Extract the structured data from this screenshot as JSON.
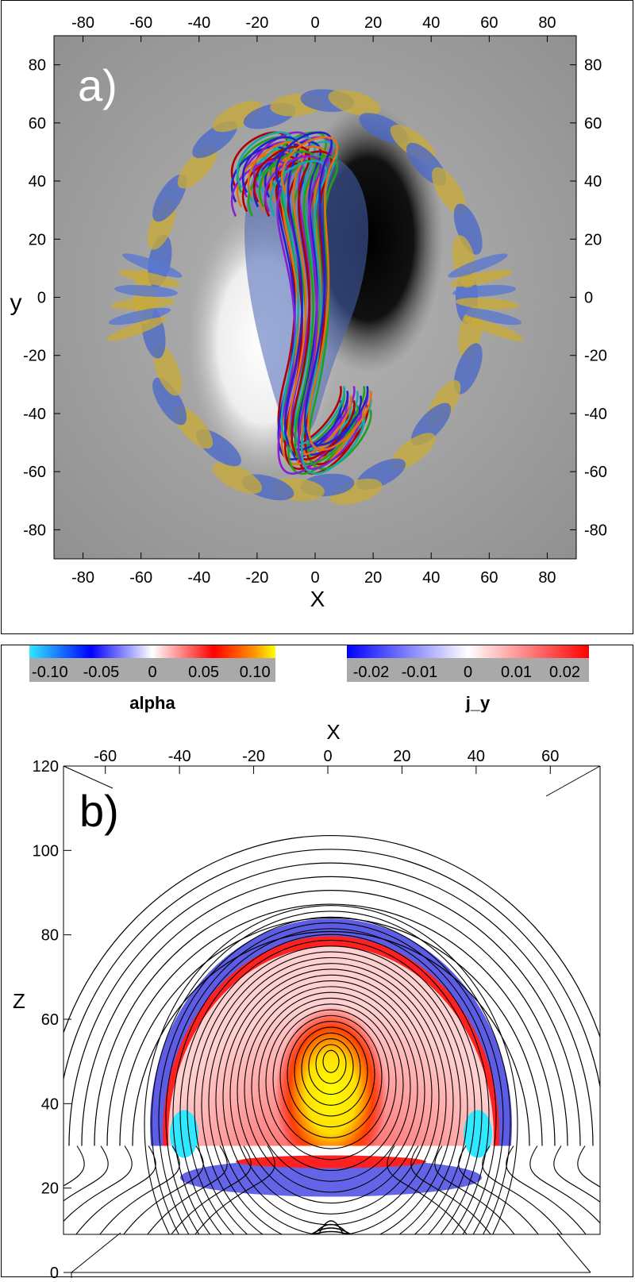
{
  "chart_data": [
    {
      "type": "heatmap",
      "panel_label": "a)",
      "xlabel": "X",
      "ylabel": "y",
      "xlim": [
        -90,
        90
      ],
      "ylim": [
        -90,
        90
      ],
      "x_ticks": [
        -80,
        -60,
        -40,
        -20,
        0,
        20,
        40,
        60,
        80
      ],
      "y_ticks": [
        -80,
        -60,
        -40,
        -20,
        0,
        20,
        40,
        60,
        80
      ],
      "description_layers": [
        "grayscale magnetogram",
        "blue and yellow isosurfaces",
        "colored twisted field lines"
      ],
      "field_line_colors": [
        "#b00000",
        "#1fa01f",
        "#8a1fd0",
        "#14a8a8",
        "#2222cc",
        "#e07010"
      ]
    },
    {
      "type": "heatmap",
      "panel_label": "b)",
      "xlabel": "X",
      "ylabel": "Z",
      "xlim": [
        -70,
        70
      ],
      "ylim": [
        0,
        120
      ],
      "x_ticks": [
        -60,
        -40,
        -20,
        0,
        20,
        40,
        60
      ],
      "z_ticks": [
        0,
        20,
        40,
        60,
        80,
        100,
        120
      ],
      "colorbars": [
        {
          "name": "alpha",
          "ticks": [
            "-0.10",
            "-0.05",
            "0",
            "0.05",
            "0.10"
          ],
          "range": [
            -0.12,
            0.12
          ],
          "colors": [
            "#30e8ff",
            "#0000ff",
            "#ffffff",
            "#ff0000",
            "#ffff00"
          ]
        },
        {
          "name": "j_y",
          "ticks": [
            "-0.02",
            "-0.01",
            "0",
            "0.01",
            "0.02"
          ],
          "range": [
            -0.025,
            0.025
          ],
          "colors": [
            "#0000ff",
            "#ffffff",
            "#ff0000"
          ]
        }
      ],
      "flux_rope_center": [
        0,
        50
      ],
      "photosphere_z": 30
    }
  ]
}
